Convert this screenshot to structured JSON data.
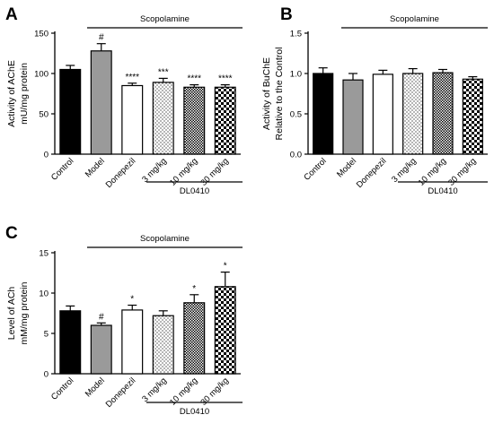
{
  "colors": {
    "axis": "#000000",
    "bar_stroke": "#000000",
    "solid_black": "#000000",
    "gray": "#9a9a9a",
    "white": "#ffffff"
  },
  "fill_styles": [
    "solid-black",
    "gray",
    "white",
    "dots-sparse",
    "dots-dense",
    "checker"
  ],
  "chart_data": [
    {
      "panel": "A",
      "type": "bar",
      "ylabel_lines": [
        "Activity of AChE",
        "mU/mg protein"
      ],
      "ylim": [
        0,
        150
      ],
      "yticks": [
        0,
        50,
        100,
        150
      ],
      "categories": [
        "Control",
        "Model",
        "Donepezil",
        "3 mg/kg",
        "10 mg/kg",
        "30 mg/kg"
      ],
      "values": [
        105,
        128,
        85,
        89,
        83,
        83
      ],
      "errors": [
        5,
        9,
        3,
        5,
        3,
        3
      ],
      "significance": [
        "",
        "#",
        "****",
        "***",
        "****",
        "****"
      ],
      "top_annotation": "Scopolamine",
      "group_annotation": "DL0410"
    },
    {
      "panel": "B",
      "type": "bar",
      "ylabel_lines": [
        "Activity of BuChE",
        "Relative to the Control"
      ],
      "ylim": [
        0,
        1.5
      ],
      "yticks": [
        0.0,
        0.5,
        1.0,
        1.5
      ],
      "ytick_labels": [
        "0.0",
        "0.5",
        "1.0",
        "1.5"
      ],
      "categories": [
        "Control",
        "Model",
        "Donepezil",
        "3 mg/kg",
        "10 mg/kg",
        "30 mg/kg"
      ],
      "values": [
        1.0,
        0.92,
        0.99,
        1.0,
        1.01,
        0.93
      ],
      "errors": [
        0.07,
        0.08,
        0.05,
        0.06,
        0.04,
        0.03
      ],
      "significance": [
        "",
        "",
        "",
        "",
        "",
        ""
      ],
      "top_annotation": "Scopolamine",
      "group_annotation": "DL0410"
    },
    {
      "panel": "C",
      "type": "bar",
      "ylabel_lines": [
        "Level of ACh",
        "mM/mg protein"
      ],
      "ylim": [
        0,
        15
      ],
      "yticks": [
        0,
        5,
        10,
        15
      ],
      "categories": [
        "Control",
        "Model",
        "Donepezil",
        "3 mg/kg",
        "10 mg/kg",
        "30 mg/kg"
      ],
      "values": [
        7.8,
        6.0,
        7.9,
        7.2,
        8.8,
        10.8
      ],
      "errors": [
        0.6,
        0.3,
        0.6,
        0.6,
        1.0,
        1.8
      ],
      "significance": [
        "",
        "#",
        "*",
        "",
        "*",
        "*"
      ],
      "top_annotation": "Scopolamine",
      "group_annotation": "DL0410"
    }
  ]
}
